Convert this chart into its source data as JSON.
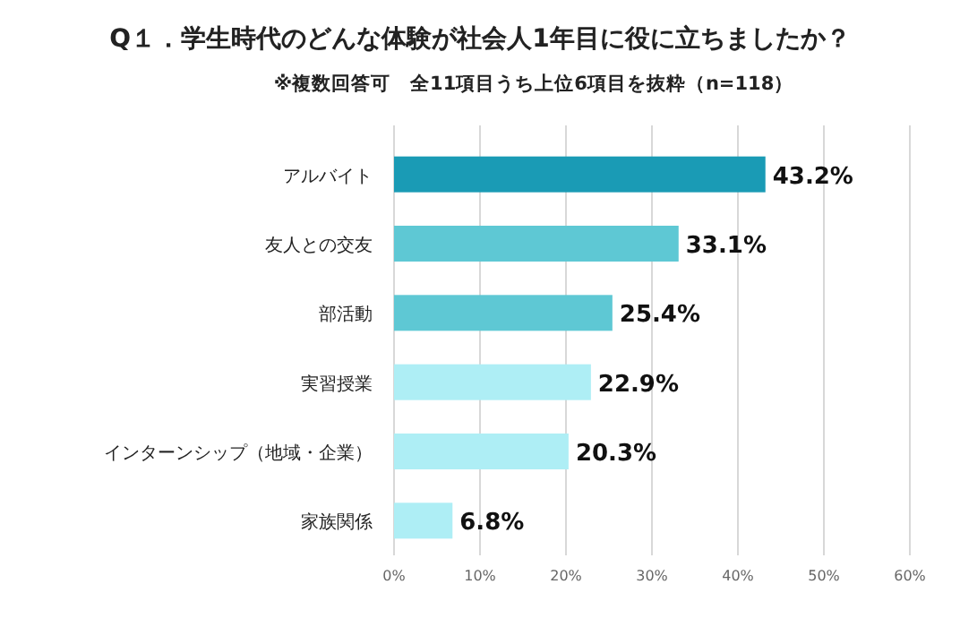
{
  "chart_data": {
    "type": "bar",
    "orientation": "horizontal",
    "title": "Q１．学生時代のどんな体験が社会人1年目に役に立ちましたか？",
    "subtitle": "※複数回答可　全11項目うち上位6項目を抜粋（n=118）",
    "categories": [
      "アルバイト",
      "友人との交友",
      "部活動",
      "実習授業",
      "インターンシップ（地域・企業）",
      "家族関係"
    ],
    "values": [
      43.2,
      33.1,
      25.4,
      22.9,
      20.3,
      6.8
    ],
    "colors": [
      "#1a9bb5",
      "#5ec8d4",
      "#5ec8d4",
      "#aeeef5",
      "#aeeef5",
      "#aeeef5"
    ],
    "value_labels": [
      "43.2%",
      "33.1%",
      "25.4%",
      "22.9%",
      "20.3%",
      "6.8%"
    ],
    "xlim": [
      0,
      60
    ],
    "xticks": [
      {
        "value": 0,
        "label": "0%"
      },
      {
        "value": 10,
        "label": "10%"
      },
      {
        "value": 20,
        "label": "20%"
      },
      {
        "value": 30,
        "label": "30%"
      },
      {
        "value": 40,
        "label": "40%"
      },
      {
        "value": 50,
        "label": "50%"
      },
      {
        "value": 60,
        "label": "60%"
      }
    ],
    "grid": "x"
  }
}
